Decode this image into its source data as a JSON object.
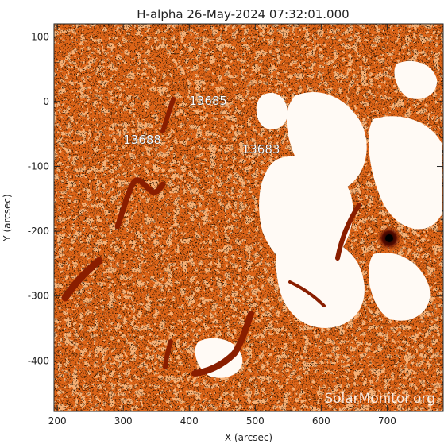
{
  "chart_data": {
    "type": "heatmap",
    "title": "H-alpha 26-May-2024 07:32:01.000",
    "xlabel": "X (arcsec)",
    "ylabel": "Y (arcsec)",
    "xlim": [
      195,
      785
    ],
    "ylim": [
      -478,
      120
    ],
    "x_ticks": [
      200,
      300,
      400,
      500,
      600,
      700
    ],
    "y_ticks": [
      100,
      0,
      -100,
      -200,
      -300,
      -400
    ],
    "active_regions": [
      {
        "label": "13685",
        "x": 400,
        "y": -5
      },
      {
        "label": "13688",
        "x": 300,
        "y": -65
      },
      {
        "label": "13683",
        "x": 480,
        "y": -80
      }
    ],
    "colors": {
      "dark": "#3a0000",
      "mid": "#e0701f",
      "bright": "#ffffff"
    },
    "watermark": "SolarMonitor.org"
  }
}
